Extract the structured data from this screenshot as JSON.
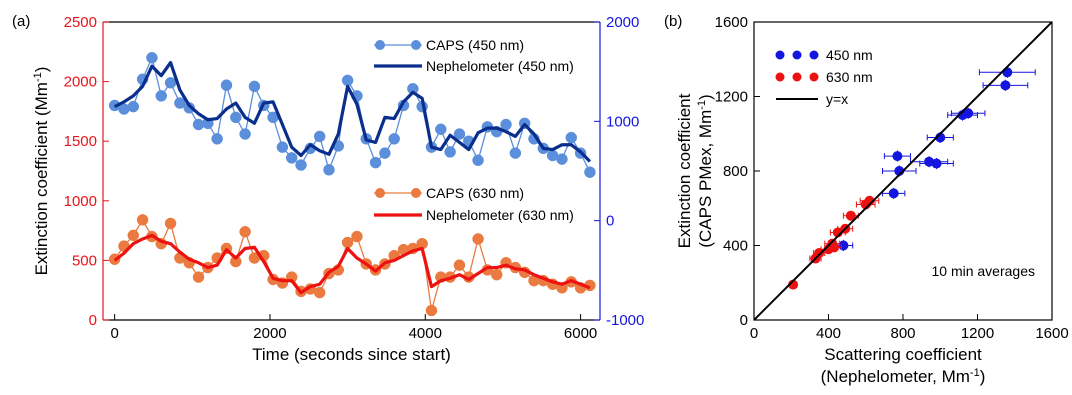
{
  "chart_data": [
    {
      "type": "line",
      "panel_label": "(a)",
      "xlabel": "Time (seconds since start)",
      "ylabel": "Extinction coefficient (Mm-1)",
      "ylabel_main": "Extinction coefficient (Mm",
      "ylabel_sup": "-1",
      "ylabel_close": ")",
      "xlim": [
        -150,
        6250
      ],
      "x_ticks": [
        0,
        2000,
        4000,
        6000
      ],
      "ylim": [
        0,
        2500
      ],
      "y_ticks": [
        0,
        500,
        1000,
        1500,
        2000,
        2500
      ],
      "y2lim": [
        -1000,
        2000
      ],
      "y2_ticks": [
        -1000,
        0,
        1000,
        2000
      ],
      "left_axis_color": "#e8141b",
      "right_axis_color": "#1515e0",
      "series": [
        {
          "name": "CAPS (450 nm)",
          "color": "#5b8fdb",
          "style": "line-markers",
          "x": [
            0,
            120,
            240,
            360,
            480,
            600,
            720,
            840,
            960,
            1080,
            1200,
            1320,
            1440,
            1560,
            1680,
            1800,
            1920,
            2040,
            2160,
            2280,
            2400,
            2520,
            2640,
            2760,
            2880,
            3000,
            3120,
            3240,
            3360,
            3480,
            3600,
            3720,
            3840,
            3960,
            4080,
            4200,
            4320,
            4440,
            4560,
            4680,
            4800,
            4920,
            5040,
            5160,
            5280,
            5400,
            5520,
            5640,
            5760,
            5880,
            6000,
            6120
          ],
          "y": [
            1800,
            1770,
            1790,
            2020,
            2200,
            1880,
            1990,
            1820,
            1780,
            1640,
            1650,
            1520,
            1970,
            1700,
            1560,
            1960,
            1800,
            1700,
            1450,
            1360,
            1300,
            1440,
            1540,
            1260,
            1460,
            2010,
            1880,
            1520,
            1320,
            1400,
            1520,
            1800,
            1940,
            1790,
            1450,
            1600,
            1410,
            1560,
            1500,
            1340,
            1620,
            1580,
            1640,
            1400,
            1650,
            1520,
            1440,
            1380,
            1350,
            1530,
            1400,
            1240
          ]
        },
        {
          "name": "Nephelometer (450 nm)",
          "color": "#0a2e8c",
          "style": "line",
          "x": [
            0,
            120,
            240,
            360,
            480,
            600,
            720,
            840,
            960,
            1080,
            1200,
            1320,
            1440,
            1560,
            1680,
            1800,
            1920,
            2040,
            2160,
            2280,
            2400,
            2520,
            2640,
            2760,
            2880,
            3000,
            3120,
            3240,
            3360,
            3480,
            3600,
            3720,
            3840,
            3960,
            4080,
            4200,
            4320,
            4440,
            4560,
            4680,
            4800,
            4920,
            5040,
            5160,
            5280,
            5400,
            5520,
            5640,
            5760,
            5880,
            6000,
            6120
          ],
          "y": [
            1790,
            1830,
            1880,
            1960,
            2130,
            2050,
            2160,
            1930,
            1800,
            1730,
            1680,
            1690,
            1770,
            1820,
            1700,
            1650,
            1820,
            1830,
            1640,
            1450,
            1380,
            1470,
            1420,
            1390,
            1560,
            1960,
            1810,
            1510,
            1490,
            1700,
            1690,
            1830,
            1910,
            1860,
            1450,
            1430,
            1550,
            1490,
            1430,
            1570,
            1610,
            1610,
            1580,
            1540,
            1640,
            1560,
            1440,
            1430,
            1470,
            1470,
            1410,
            1330
          ]
        },
        {
          "name": "CAPS (630 nm)",
          "color": "#ea7a3f",
          "style": "line-markers",
          "x": [
            0,
            120,
            240,
            360,
            480,
            600,
            720,
            840,
            960,
            1080,
            1200,
            1320,
            1440,
            1560,
            1680,
            1800,
            1920,
            2040,
            2160,
            2280,
            2400,
            2520,
            2640,
            2760,
            2880,
            3000,
            3120,
            3240,
            3360,
            3480,
            3600,
            3720,
            3840,
            3960,
            4080,
            4200,
            4320,
            4440,
            4560,
            4680,
            4800,
            4920,
            5040,
            5160,
            5280,
            5400,
            5520,
            5640,
            5760,
            5880,
            6000,
            6120
          ],
          "y": [
            510,
            620,
            710,
            840,
            700,
            640,
            810,
            520,
            480,
            360,
            440,
            520,
            600,
            490,
            740,
            520,
            540,
            340,
            310,
            360,
            240,
            260,
            230,
            390,
            420,
            650,
            700,
            470,
            420,
            470,
            540,
            590,
            600,
            640,
            80,
            360,
            360,
            460,
            360,
            680,
            420,
            380,
            480,
            440,
            400,
            330,
            330,
            300,
            270,
            320,
            270,
            290
          ]
        },
        {
          "name": "Nephelometer (630 nm)",
          "color": "#ee1111",
          "style": "line",
          "x": [
            0,
            120,
            240,
            360,
            480,
            600,
            720,
            840,
            960,
            1080,
            1200,
            1320,
            1440,
            1560,
            1680,
            1800,
            1920,
            2040,
            2160,
            2280,
            2400,
            2520,
            2640,
            2760,
            2880,
            3000,
            3120,
            3240,
            3360,
            3480,
            3600,
            3720,
            3840,
            3960,
            4080,
            4200,
            4320,
            4440,
            4560,
            4680,
            4800,
            4920,
            5040,
            5160,
            5280,
            5400,
            5520,
            5640,
            5760,
            5880,
            6000,
            6120
          ],
          "y": [
            500,
            560,
            640,
            680,
            710,
            660,
            640,
            570,
            510,
            480,
            440,
            460,
            590,
            520,
            600,
            610,
            490,
            350,
            330,
            330,
            230,
            280,
            300,
            400,
            450,
            600,
            520,
            470,
            410,
            480,
            500,
            540,
            580,
            600,
            280,
            330,
            350,
            380,
            340,
            390,
            440,
            440,
            460,
            430,
            420,
            380,
            350,
            320,
            300,
            330,
            300,
            270
          ]
        }
      ]
    },
    {
      "type": "scatter",
      "panel_label": "(b)",
      "xlabel_line1": "Scattering coefficient",
      "xlabel_line2_main": "(Nephelometer, Mm",
      "xlabel_line2_sup": "-1",
      "xlabel_line2_close": ")",
      "ylabel_line1": "Extinction coefficient",
      "ylabel_line2_main": "(CAPS PMex, Mm",
      "ylabel_line2_sup": "-1",
      "ylabel_line2_close": ")",
      "xlim": [
        0,
        1600
      ],
      "ylim": [
        0,
        1600
      ],
      "x_ticks": [
        0,
        400,
        800,
        1200,
        1600
      ],
      "y_ticks": [
        0,
        400,
        800,
        1200,
        1600
      ],
      "annotation": "10 min averages",
      "series": [
        {
          "name": "450 nm",
          "color": "#1515e0",
          "x": [
            1360,
            1350,
            1150,
            1120,
            1000,
            980,
            940,
            770,
            780,
            750,
            480
          ],
          "x_err": [
            150,
            120,
            90,
            80,
            70,
            90,
            100,
            70,
            90,
            60,
            50
          ],
          "y": [
            1330,
            1260,
            1110,
            1100,
            980,
            840,
            850,
            880,
            800,
            680,
            400
          ],
          "y_err": [
            30,
            30,
            30,
            30,
            30,
            30,
            30,
            30,
            30,
            30,
            30
          ]
        },
        {
          "name": "630 nm",
          "color": "#ee1111",
          "x": [
            210,
            330,
            350,
            400,
            420,
            430,
            450,
            490,
            520,
            600,
            620
          ],
          "x_err": [
            20,
            30,
            30,
            40,
            40,
            40,
            40,
            40,
            40,
            50,
            50
          ],
          "y": [
            190,
            330,
            360,
            380,
            410,
            390,
            470,
            490,
            560,
            620,
            640
          ],
          "y_err": [
            20,
            20,
            20,
            20,
            20,
            20,
            20,
            20,
            20,
            20,
            20
          ]
        },
        {
          "name": "y=x",
          "color": "#000000",
          "style": "line",
          "x": [
            0,
            1600
          ],
          "y": [
            0,
            1600
          ]
        }
      ]
    }
  ]
}
